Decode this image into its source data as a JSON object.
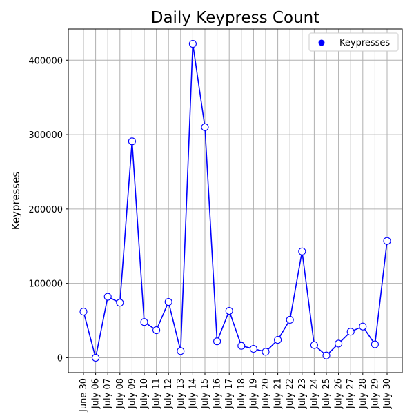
{
  "chart_data": {
    "type": "line",
    "title": "Daily Keypress Count",
    "xlabel": "",
    "ylabel": "Keypresses",
    "categories": [
      "June 30",
      "July 06",
      "July 07",
      "July 08",
      "July 09",
      "July 10",
      "July 11",
      "July 12",
      "July 13",
      "July 14",
      "July 15",
      "July 16",
      "July 17",
      "July 18",
      "July 19",
      "July 20",
      "July 21",
      "July 22",
      "July 23",
      "July 24",
      "July 25",
      "July 26",
      "July 27",
      "July 28",
      "July 29",
      "July 30"
    ],
    "series": [
      {
        "name": "Keypresses",
        "color": "#0000ff",
        "values": [
          62000,
          0,
          82000,
          74000,
          291000,
          48000,
          37000,
          75000,
          9000,
          422000,
          310000,
          22000,
          63000,
          16000,
          12000,
          8000,
          24000,
          51000,
          143000,
          17000,
          3000,
          19000,
          35000,
          42000,
          18000,
          157000
        ]
      }
    ],
    "yticks": [
      0,
      100000,
      200000,
      300000,
      400000
    ],
    "ytick_labels": [
      "0",
      "100000",
      "200000",
      "300000",
      "400000"
    ],
    "ylim": [
      -20000,
      442000
    ],
    "grid": true,
    "legend": {
      "position": "top-right",
      "entries": [
        "Keypresses"
      ]
    }
  }
}
